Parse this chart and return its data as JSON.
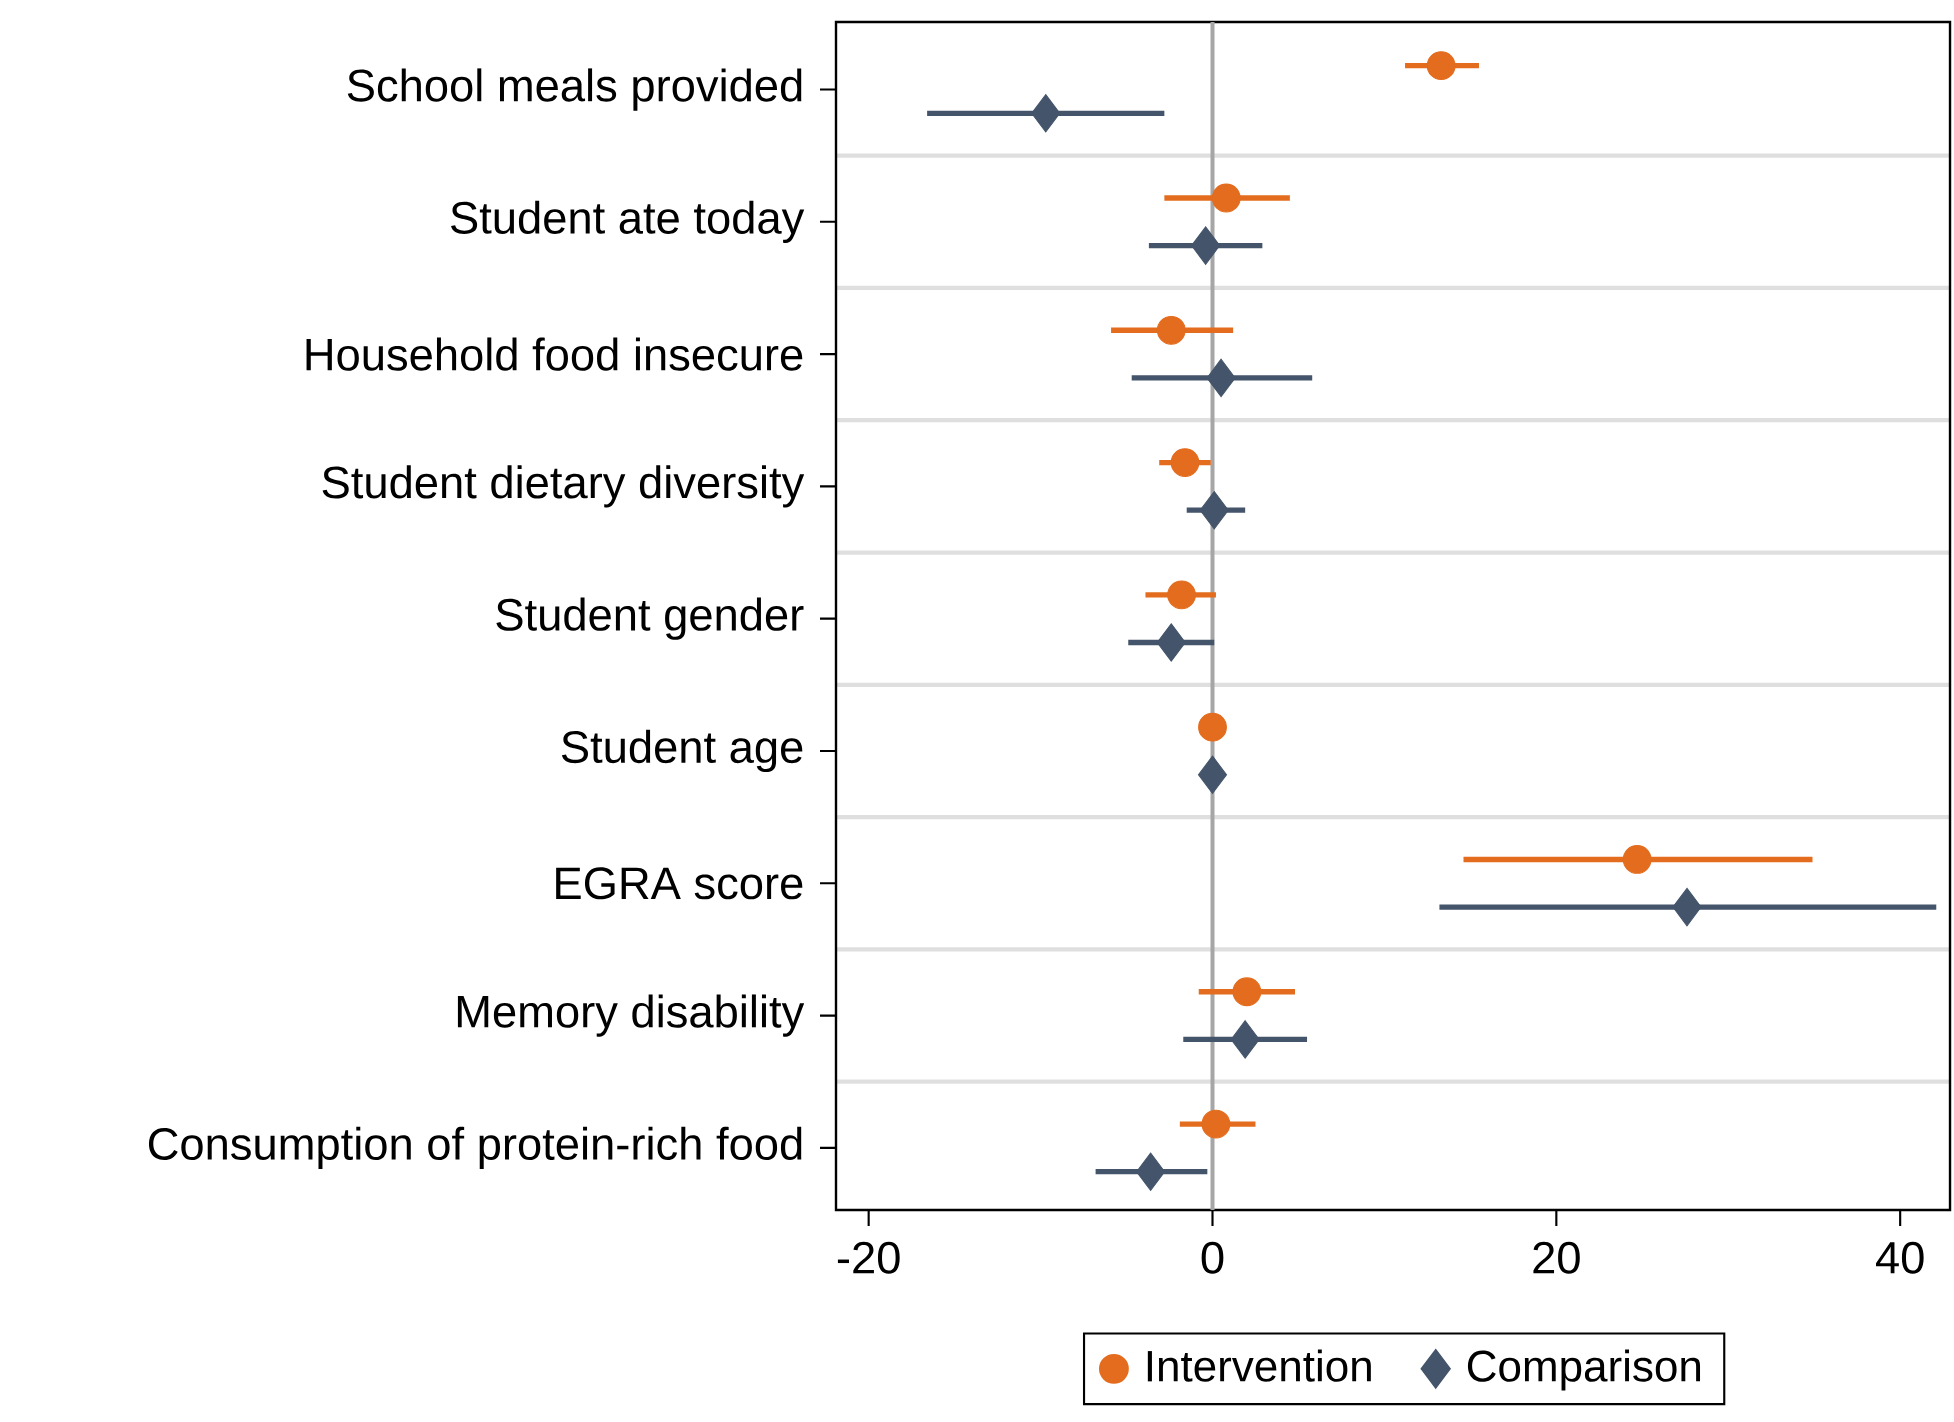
{
  "chart_data": {
    "type": "scatter",
    "orientation": "horizontal",
    "categories": [
      "School meals provided",
      "Student ate today",
      "Household food insecure",
      "Student dietary diversity",
      "Student gender",
      "Student age",
      "EGRA score",
      "Memory disability",
      "Consumption of protein-rich food"
    ],
    "series": [
      {
        "name": "Intervention",
        "color": "#e36c1e",
        "marker": "circle",
        "values": [
          13.3,
          0.8,
          -2.4,
          -1.6,
          -1.8,
          0,
          24.7,
          2.0,
          0.2
        ],
        "errors": [
          [
            11.2,
            15.5
          ],
          [
            -2.8,
            4.5
          ],
          [
            -5.9,
            1.2
          ],
          [
            -3.1,
            -0.1
          ],
          [
            -3.9,
            0.2
          ],
          null,
          [
            14.6,
            34.9
          ],
          [
            -0.8,
            4.8
          ],
          [
            -1.9,
            2.5
          ]
        ]
      },
      {
        "name": "Comparison",
        "color": "#44546a",
        "marker": "diamond",
        "values": [
          -9.7,
          -0.4,
          0.5,
          0.1,
          -2.4,
          0,
          27.6,
          1.9,
          -3.6
        ],
        "errors": [
          [
            -16.6,
            -2.8
          ],
          [
            -3.7,
            2.9
          ],
          [
            -4.7,
            5.8
          ],
          [
            -1.5,
            1.9
          ],
          [
            -4.9,
            0.1
          ],
          null,
          [
            13.2,
            42.1
          ],
          [
            -1.7,
            5.5
          ],
          [
            -6.8,
            -0.3
          ]
        ]
      }
    ],
    "xlim": [
      -21.9,
      42.9
    ],
    "xticks": [
      -20,
      0,
      20,
      40
    ],
    "ref_lines": [
      {
        "axis": "x",
        "value": 0,
        "color": "#a6a6a6"
      }
    ],
    "grid": "y",
    "legend": "bottom"
  }
}
